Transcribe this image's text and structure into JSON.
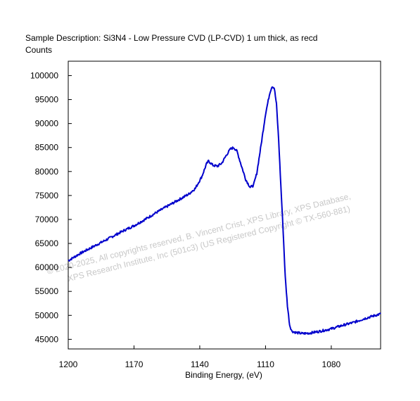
{
  "chart_data": {
    "type": "line",
    "title": "Sample Description:  Si3N4 - Low Pressure CVD (LP-CVD) 1 um thick, as recd",
    "ylabel": "Counts",
    "xlabel": "Binding Energy, (eV)",
    "xlim": [
      1200,
      1057.5
    ],
    "ylim": [
      43000,
      103000
    ],
    "x_reversed": true,
    "grid": false,
    "xticks": [
      1200,
      1170,
      1140,
      1110,
      1080
    ],
    "yticks": [
      45000,
      50000,
      55000,
      60000,
      65000,
      70000,
      75000,
      80000,
      85000,
      90000,
      95000,
      100000
    ],
    "xtick_labels": [
      "1200",
      "1170",
      "1140",
      "1110",
      "1080"
    ],
    "ytick_labels": [
      "45000",
      "50000",
      "55000",
      "60000",
      "65000",
      "70000",
      "75000",
      "80000",
      "85000",
      "90000",
      "95000",
      "100000"
    ],
    "series": [
      {
        "color": "#0000cc",
        "points": [
          [
            1200,
            61400
          ],
          [
            1195,
            62800
          ],
          [
            1190,
            64000
          ],
          [
            1185,
            65200
          ],
          [
            1180,
            66400
          ],
          [
            1175,
            67600
          ],
          [
            1170,
            68700
          ],
          [
            1165,
            70000
          ],
          [
            1160,
            71400
          ],
          [
            1155,
            72700
          ],
          [
            1150,
            74000
          ],
          [
            1145,
            75300
          ],
          [
            1142,
            76500
          ],
          [
            1139,
            79000
          ],
          [
            1137,
            81500
          ],
          [
            1136,
            82200
          ],
          [
            1134,
            81300
          ],
          [
            1132,
            81100
          ],
          [
            1130,
            81700
          ],
          [
            1128,
            83300
          ],
          [
            1126,
            84700
          ],
          [
            1124.5,
            85000
          ],
          [
            1123,
            84200
          ],
          [
            1121,
            81200
          ],
          [
            1119,
            78300
          ],
          [
            1117,
            76700
          ],
          [
            1115.5,
            77100
          ],
          [
            1114,
            79600
          ],
          [
            1112,
            85600
          ],
          [
            1110,
            92000
          ],
          [
            1108,
            96500
          ],
          [
            1107,
            97800
          ],
          [
            1106,
            97400
          ],
          [
            1105,
            94000
          ],
          [
            1104,
            86500
          ],
          [
            1103,
            77000
          ],
          [
            1102,
            68000
          ],
          [
            1101,
            58000
          ],
          [
            1100,
            52000
          ],
          [
            1099,
            48000
          ],
          [
            1098,
            46700
          ],
          [
            1096,
            46400
          ],
          [
            1093,
            46200
          ],
          [
            1090,
            46300
          ],
          [
            1085,
            46700
          ],
          [
            1080,
            47200
          ],
          [
            1075,
            47900
          ],
          [
            1070,
            48500
          ],
          [
            1065,
            49300
          ],
          [
            1060,
            50000
          ],
          [
            1057.5,
            50300
          ]
        ]
      }
    ]
  },
  "watermark": {
    "line1": "©  2020-2025,  All copyrights reserved,   B. Vincent Crist,  XPS Library, XPS Database,",
    "line2": "XPS Research Institute, Inc (501c3)   (US Registered Copyright © TX-560-881)"
  }
}
